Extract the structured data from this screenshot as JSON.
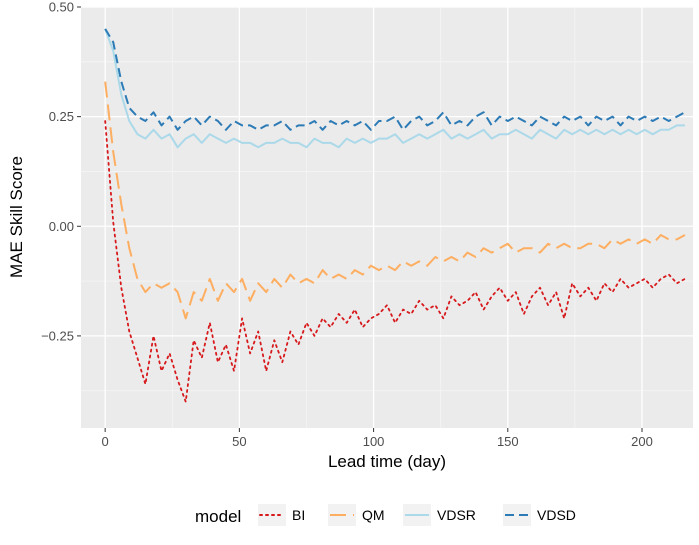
{
  "chart_data": {
    "type": "line",
    "title": "",
    "xlabel": "Lead time (day)",
    "ylabel": "MAE Skill Score",
    "xlim": [
      -9,
      219
    ],
    "ylim": [
      -0.46,
      0.5
    ],
    "x_ticks": [
      0,
      50,
      100,
      150,
      200
    ],
    "x_tick_labels": [
      "0",
      "50",
      "100",
      "150",
      "200"
    ],
    "y_ticks": [
      0.5,
      0.25,
      0.0,
      -0.25
    ],
    "y_tick_labels": [
      "0.50",
      "0.25",
      "0.00",
      "−0.25"
    ],
    "grid": true,
    "legend": {
      "title": "model",
      "position": "bottom"
    },
    "x": [
      0,
      3,
      6,
      9,
      12,
      15,
      18,
      21,
      24,
      27,
      30,
      33,
      36,
      39,
      42,
      45,
      48,
      51,
      54,
      57,
      60,
      63,
      66,
      69,
      72,
      75,
      78,
      81,
      84,
      87,
      90,
      93,
      96,
      99,
      102,
      105,
      108,
      111,
      114,
      117,
      120,
      123,
      126,
      129,
      132,
      135,
      138,
      141,
      144,
      147,
      150,
      153,
      156,
      159,
      162,
      165,
      168,
      171,
      174,
      177,
      180,
      183,
      186,
      189,
      192,
      195,
      198,
      201,
      204,
      207,
      210,
      213,
      216
    ],
    "series": [
      {
        "name": "BI",
        "color": "#d7191c",
        "dash": "dotted",
        "values": [
          0.24,
          0.01,
          -0.14,
          -0.24,
          -0.3,
          -0.36,
          -0.25,
          -0.33,
          -0.29,
          -0.35,
          -0.4,
          -0.26,
          -0.3,
          -0.22,
          -0.31,
          -0.27,
          -0.33,
          -0.21,
          -0.29,
          -0.24,
          -0.33,
          -0.26,
          -0.31,
          -0.24,
          -0.27,
          -0.22,
          -0.25,
          -0.21,
          -0.23,
          -0.2,
          -0.22,
          -0.19,
          -0.23,
          -0.21,
          -0.2,
          -0.18,
          -0.22,
          -0.19,
          -0.2,
          -0.17,
          -0.19,
          -0.18,
          -0.21,
          -0.16,
          -0.18,
          -0.17,
          -0.15,
          -0.19,
          -0.16,
          -0.14,
          -0.17,
          -0.15,
          -0.2,
          -0.16,
          -0.14,
          -0.18,
          -0.15,
          -0.21,
          -0.13,
          -0.16,
          -0.14,
          -0.17,
          -0.13,
          -0.15,
          -0.12,
          -0.14,
          -0.13,
          -0.12,
          -0.14,
          -0.12,
          -0.11,
          -0.13,
          -0.12
        ]
      },
      {
        "name": "QM",
        "color": "#fdae61",
        "dash": "longdash",
        "values": [
          0.33,
          0.17,
          0.05,
          -0.05,
          -0.12,
          -0.15,
          -0.13,
          -0.14,
          -0.13,
          -0.15,
          -0.21,
          -0.15,
          -0.17,
          -0.12,
          -0.17,
          -0.13,
          -0.15,
          -0.12,
          -0.17,
          -0.13,
          -0.15,
          -0.12,
          -0.14,
          -0.11,
          -0.13,
          -0.12,
          -0.13,
          -0.1,
          -0.12,
          -0.11,
          -0.12,
          -0.1,
          -0.11,
          -0.09,
          -0.1,
          -0.09,
          -0.1,
          -0.08,
          -0.09,
          -0.08,
          -0.09,
          -0.07,
          -0.08,
          -0.07,
          -0.08,
          -0.06,
          -0.07,
          -0.05,
          -0.06,
          -0.05,
          -0.04,
          -0.06,
          -0.05,
          -0.05,
          -0.06,
          -0.04,
          -0.05,
          -0.04,
          -0.05,
          -0.05,
          -0.04,
          -0.04,
          -0.05,
          -0.03,
          -0.04,
          -0.03,
          -0.04,
          -0.03,
          -0.04,
          -0.02,
          -0.03,
          -0.03,
          -0.02
        ]
      },
      {
        "name": "VDSR",
        "color": "#abd9e9",
        "dash": "solid",
        "values": [
          0.45,
          0.4,
          0.3,
          0.24,
          0.21,
          0.2,
          0.22,
          0.2,
          0.21,
          0.18,
          0.2,
          0.21,
          0.19,
          0.21,
          0.2,
          0.19,
          0.2,
          0.19,
          0.19,
          0.18,
          0.19,
          0.19,
          0.2,
          0.19,
          0.19,
          0.18,
          0.2,
          0.19,
          0.19,
          0.18,
          0.2,
          0.19,
          0.2,
          0.19,
          0.2,
          0.2,
          0.21,
          0.19,
          0.2,
          0.21,
          0.2,
          0.21,
          0.22,
          0.2,
          0.21,
          0.2,
          0.21,
          0.22,
          0.2,
          0.21,
          0.21,
          0.22,
          0.21,
          0.2,
          0.22,
          0.21,
          0.2,
          0.22,
          0.21,
          0.22,
          0.21,
          0.22,
          0.21,
          0.22,
          0.21,
          0.22,
          0.21,
          0.22,
          0.21,
          0.22,
          0.22,
          0.23,
          0.23
        ]
      },
      {
        "name": "VDSD",
        "color": "#2c7bb6",
        "dash": "dashed",
        "values": [
          0.45,
          0.42,
          0.33,
          0.27,
          0.25,
          0.24,
          0.26,
          0.23,
          0.25,
          0.22,
          0.24,
          0.25,
          0.23,
          0.25,
          0.24,
          0.22,
          0.24,
          0.23,
          0.23,
          0.22,
          0.23,
          0.23,
          0.24,
          0.22,
          0.23,
          0.23,
          0.24,
          0.22,
          0.24,
          0.23,
          0.24,
          0.23,
          0.24,
          0.22,
          0.24,
          0.24,
          0.25,
          0.22,
          0.24,
          0.25,
          0.23,
          0.24,
          0.26,
          0.23,
          0.24,
          0.23,
          0.25,
          0.26,
          0.23,
          0.25,
          0.24,
          0.25,
          0.24,
          0.23,
          0.25,
          0.24,
          0.23,
          0.25,
          0.24,
          0.25,
          0.23,
          0.25,
          0.24,
          0.25,
          0.23,
          0.25,
          0.24,
          0.25,
          0.24,
          0.25,
          0.24,
          0.25,
          0.26
        ]
      }
    ]
  }
}
